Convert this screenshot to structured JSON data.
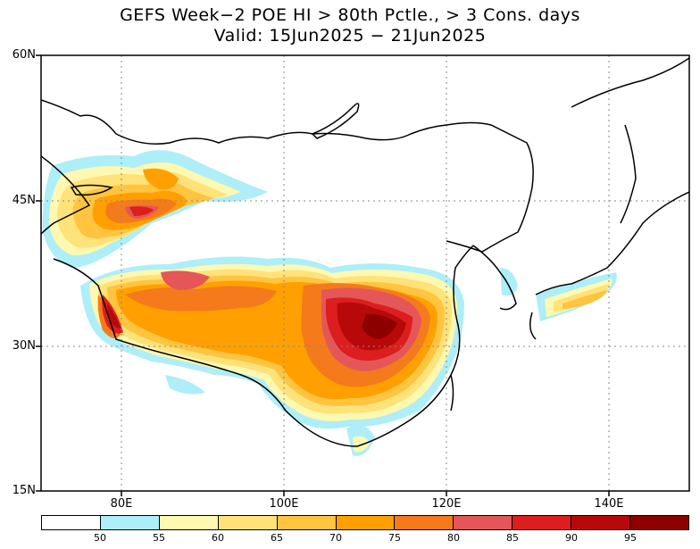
{
  "title": {
    "line1": "GEFS Week−2 POE HI > 80th Pctle., > 3 Cons. days",
    "line2": "Valid: 15Jun2025 − 21Jun2025"
  },
  "axes": {
    "lat_labels": [
      "60N",
      "45N",
      "30N",
      "15N"
    ],
    "lon_labels": [
      "80E",
      "100E",
      "120E",
      "140E"
    ]
  },
  "colorbar": {
    "colors": [
      "#ffffff",
      "#aeeef8",
      "#fff8b0",
      "#ffe27a",
      "#ffc440",
      "#ffa000",
      "#f47a1c",
      "#e45658",
      "#dc1e1e",
      "#b8090a",
      "#8c0000"
    ],
    "labels": [
      "50",
      "55",
      "60",
      "65",
      "70",
      "75",
      "80",
      "85",
      "90",
      "95"
    ]
  }
}
